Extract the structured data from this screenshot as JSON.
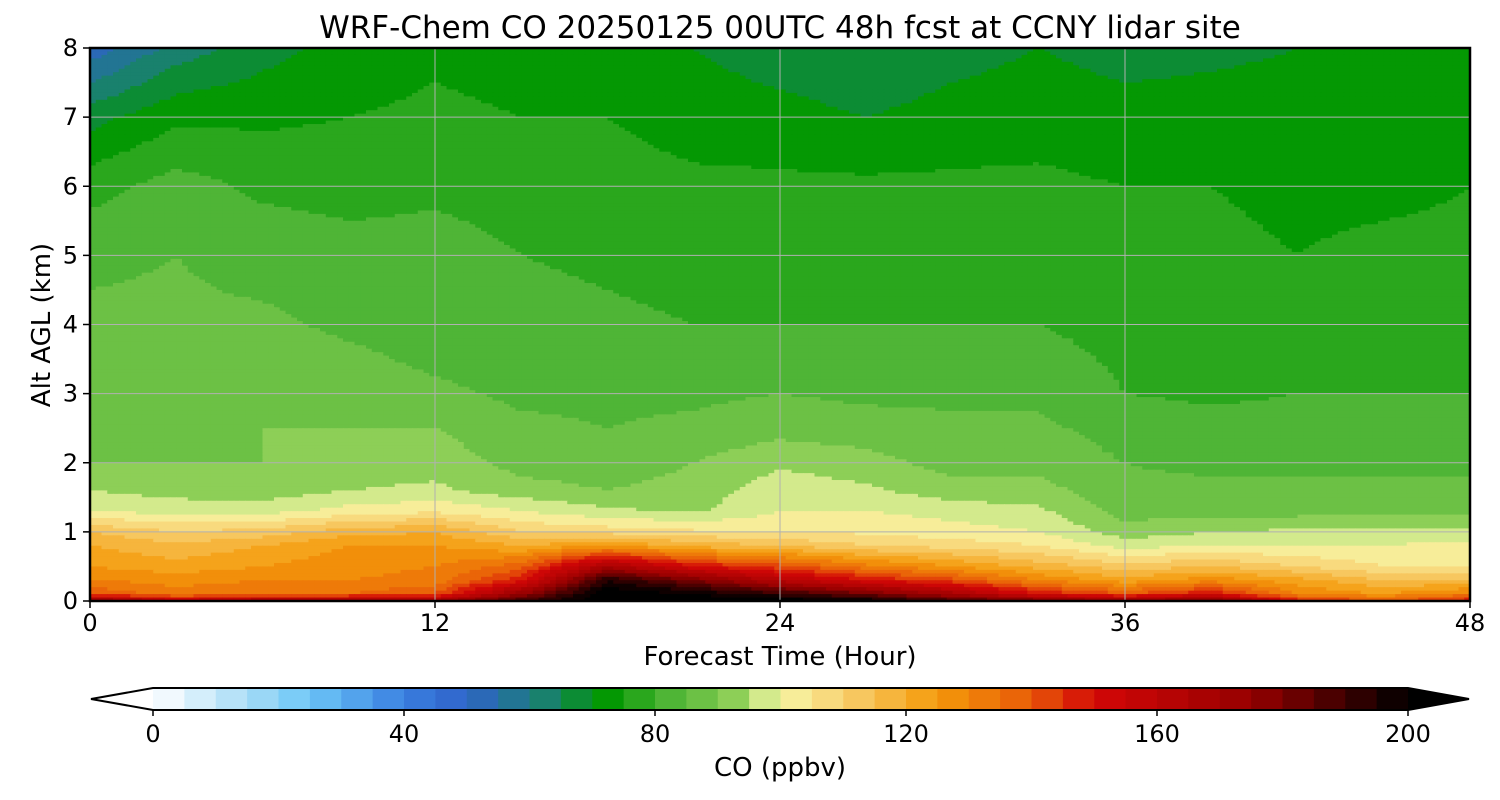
{
  "chart_data": {
    "type": "heatmap",
    "title": "WRF-Chem CO  20250125 00UTC 48h fcst at CCNY lidar site",
    "xlabel": "Forecast Time (Hour)",
    "ylabel": "Alt AGL (km)",
    "xlim": [
      0,
      48
    ],
    "ylim": [
      0,
      8
    ],
    "x_ticks": [
      0,
      12,
      24,
      36,
      48
    ],
    "y_ticks": [
      0,
      1,
      2,
      3,
      4,
      5,
      6,
      7,
      8
    ],
    "grid": true,
    "x_hours": [
      0,
      3,
      6,
      9,
      12,
      15,
      18,
      21,
      24,
      27,
      30,
      33,
      36,
      39,
      42,
      45,
      48
    ],
    "levels_km": [
      0,
      0.1,
      0.3,
      0.5,
      0.8,
      1.0,
      1.3,
      1.6,
      2.0,
      2.5,
      3.0,
      3.5,
      4.0,
      5.0,
      6.0,
      7.0,
      8.0
    ],
    "values_ppbv": [
      [
        180,
        160,
        170,
        175,
        172,
        190,
        205,
        205,
        205,
        200,
        190,
        182,
        175,
        182,
        150,
        140,
        150
      ],
      [
        140,
        132,
        135,
        135,
        140,
        175,
        205,
        200,
        192,
        182,
        168,
        150,
        140,
        150,
        130,
        125,
        132
      ],
      [
        130,
        128,
        130,
        130,
        132,
        148,
        195,
        180,
        162,
        150,
        142,
        130,
        122,
        128,
        122,
        115,
        115
      ],
      [
        125,
        122,
        125,
        128,
        130,
        138,
        168,
        150,
        142,
        132,
        125,
        118,
        112,
        115,
        110,
        105,
        105
      ],
      [
        120,
        116,
        120,
        125,
        125,
        120,
        125,
        118,
        115,
        110,
        108,
        105,
        98,
        100,
        100,
        100,
        102
      ],
      [
        115,
        110,
        112,
        118,
        120,
        110,
        108,
        106,
        105,
        104,
        102,
        100,
        92,
        95,
        96,
        96,
        96
      ],
      [
        100,
        98,
        98,
        102,
        104,
        100,
        96,
        94,
        100,
        100,
        98,
        96,
        88,
        88,
        88,
        88,
        88
      ],
      [
        95,
        93,
        92,
        95,
        96,
        92,
        90,
        92,
        98,
        96,
        92,
        92,
        86,
        86,
        86,
        86,
        86
      ],
      [
        90,
        90,
        90,
        92,
        93,
        88,
        87,
        90,
        94,
        92,
        88,
        88,
        85,
        84,
        84,
        84,
        84
      ],
      [
        90,
        88,
        90,
        90,
        90,
        86,
        85,
        86,
        88,
        87,
        86,
        86,
        83,
        82,
        82,
        82,
        82
      ],
      [
        90,
        88,
        90,
        88,
        86,
        84,
        84,
        84,
        85,
        84,
        84,
        84,
        80,
        79,
        80,
        80,
        80
      ],
      [
        88,
        88,
        88,
        86,
        84,
        83,
        82,
        82,
        82,
        82,
        82,
        82,
        79,
        78,
        78,
        79,
        79
      ],
      [
        86,
        86,
        86,
        84,
        83,
        82,
        81,
        80,
        80,
        80,
        80,
        80,
        78,
        77,
        76,
        77,
        78
      ],
      [
        84,
        85,
        83,
        82,
        82,
        80,
        79,
        78,
        78,
        78,
        78,
        78,
        76,
        76,
        75,
        76,
        76
      ],
      [
        78,
        82,
        79,
        78,
        79,
        78,
        77,
        76,
        76,
        76,
        76,
        76,
        75,
        75,
        74,
        74,
        75
      ],
      [
        68,
        74,
        74,
        75,
        76,
        75,
        75,
        73,
        72,
        70,
        72,
        73,
        72,
        72,
        72,
        72,
        72
      ],
      [
        52,
        62,
        68,
        72,
        74,
        73,
        73,
        70,
        67,
        65,
        68,
        70,
        68,
        69,
        70,
        70,
        70
      ]
    ],
    "colorbar": {
      "label": "CO  (ppbv)",
      "vmin": 0,
      "vmax": 200,
      "step": 5,
      "ticks": [
        0,
        40,
        80,
        120,
        160,
        200
      ],
      "extend": "both"
    },
    "colormap_stops": [
      [
        0,
        "#ffffff"
      ],
      [
        15,
        "#a9dcf6"
      ],
      [
        25,
        "#6cc6f7"
      ],
      [
        40,
        "#3a7fe0"
      ],
      [
        50,
        "#2f63c9"
      ],
      [
        62,
        "#1a8073"
      ],
      [
        72,
        "#009600"
      ],
      [
        82,
        "#4cb435"
      ],
      [
        92,
        "#86cc52"
      ],
      [
        100,
        "#f6f7a6"
      ],
      [
        110,
        "#f8d070"
      ],
      [
        125,
        "#f49a0a"
      ],
      [
        140,
        "#e85a08"
      ],
      [
        150,
        "#d30707"
      ],
      [
        175,
        "#960000"
      ],
      [
        200,
        "#000000"
      ]
    ]
  }
}
